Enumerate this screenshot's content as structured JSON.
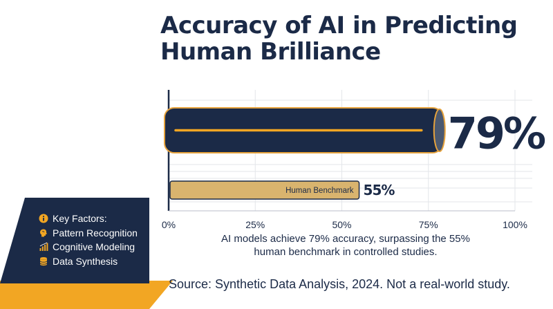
{
  "title_lines": [
    "Accuracy of AI in Predicting",
    "Human Brilliance"
  ],
  "caption_lines": [
    "AI models achieve 79% accuracy, surpassing the 55%",
    "human benchmark in controlled studies."
  ],
  "source": "Source: Synthetic Data Analysis, 2024. Not a real-world study.",
  "key_factors": {
    "heading": "Key Factors:",
    "items": [
      {
        "label": "Pattern Recognition",
        "icon": "brain-icon"
      },
      {
        "label": "Cognitive Modeling",
        "icon": "bar-chart-icon"
      },
      {
        "label": "Data Synthesis",
        "icon": "database-icon"
      }
    ],
    "heading_icon": "info-icon"
  },
  "colors": {
    "navy": "#1b2a47",
    "gold": "#f2a623",
    "tan": "#d9b46e",
    "grid": "#e3e6ea"
  },
  "chart_data": {
    "type": "bar",
    "orientation": "horizontal",
    "categories": [
      "",
      "Human Benchmark"
    ],
    "values": [
      79,
      55
    ],
    "value_labels": [
      "79%",
      "55%"
    ],
    "bar_colors": [
      "#1b2a47",
      "#d9b46e"
    ],
    "xlim": [
      0,
      100
    ],
    "xticks": [
      0,
      25,
      50,
      75,
      100
    ],
    "xtick_labels": [
      "0%",
      "25%",
      "50%",
      "75%",
      "100%"
    ],
    "grid": true
  }
}
